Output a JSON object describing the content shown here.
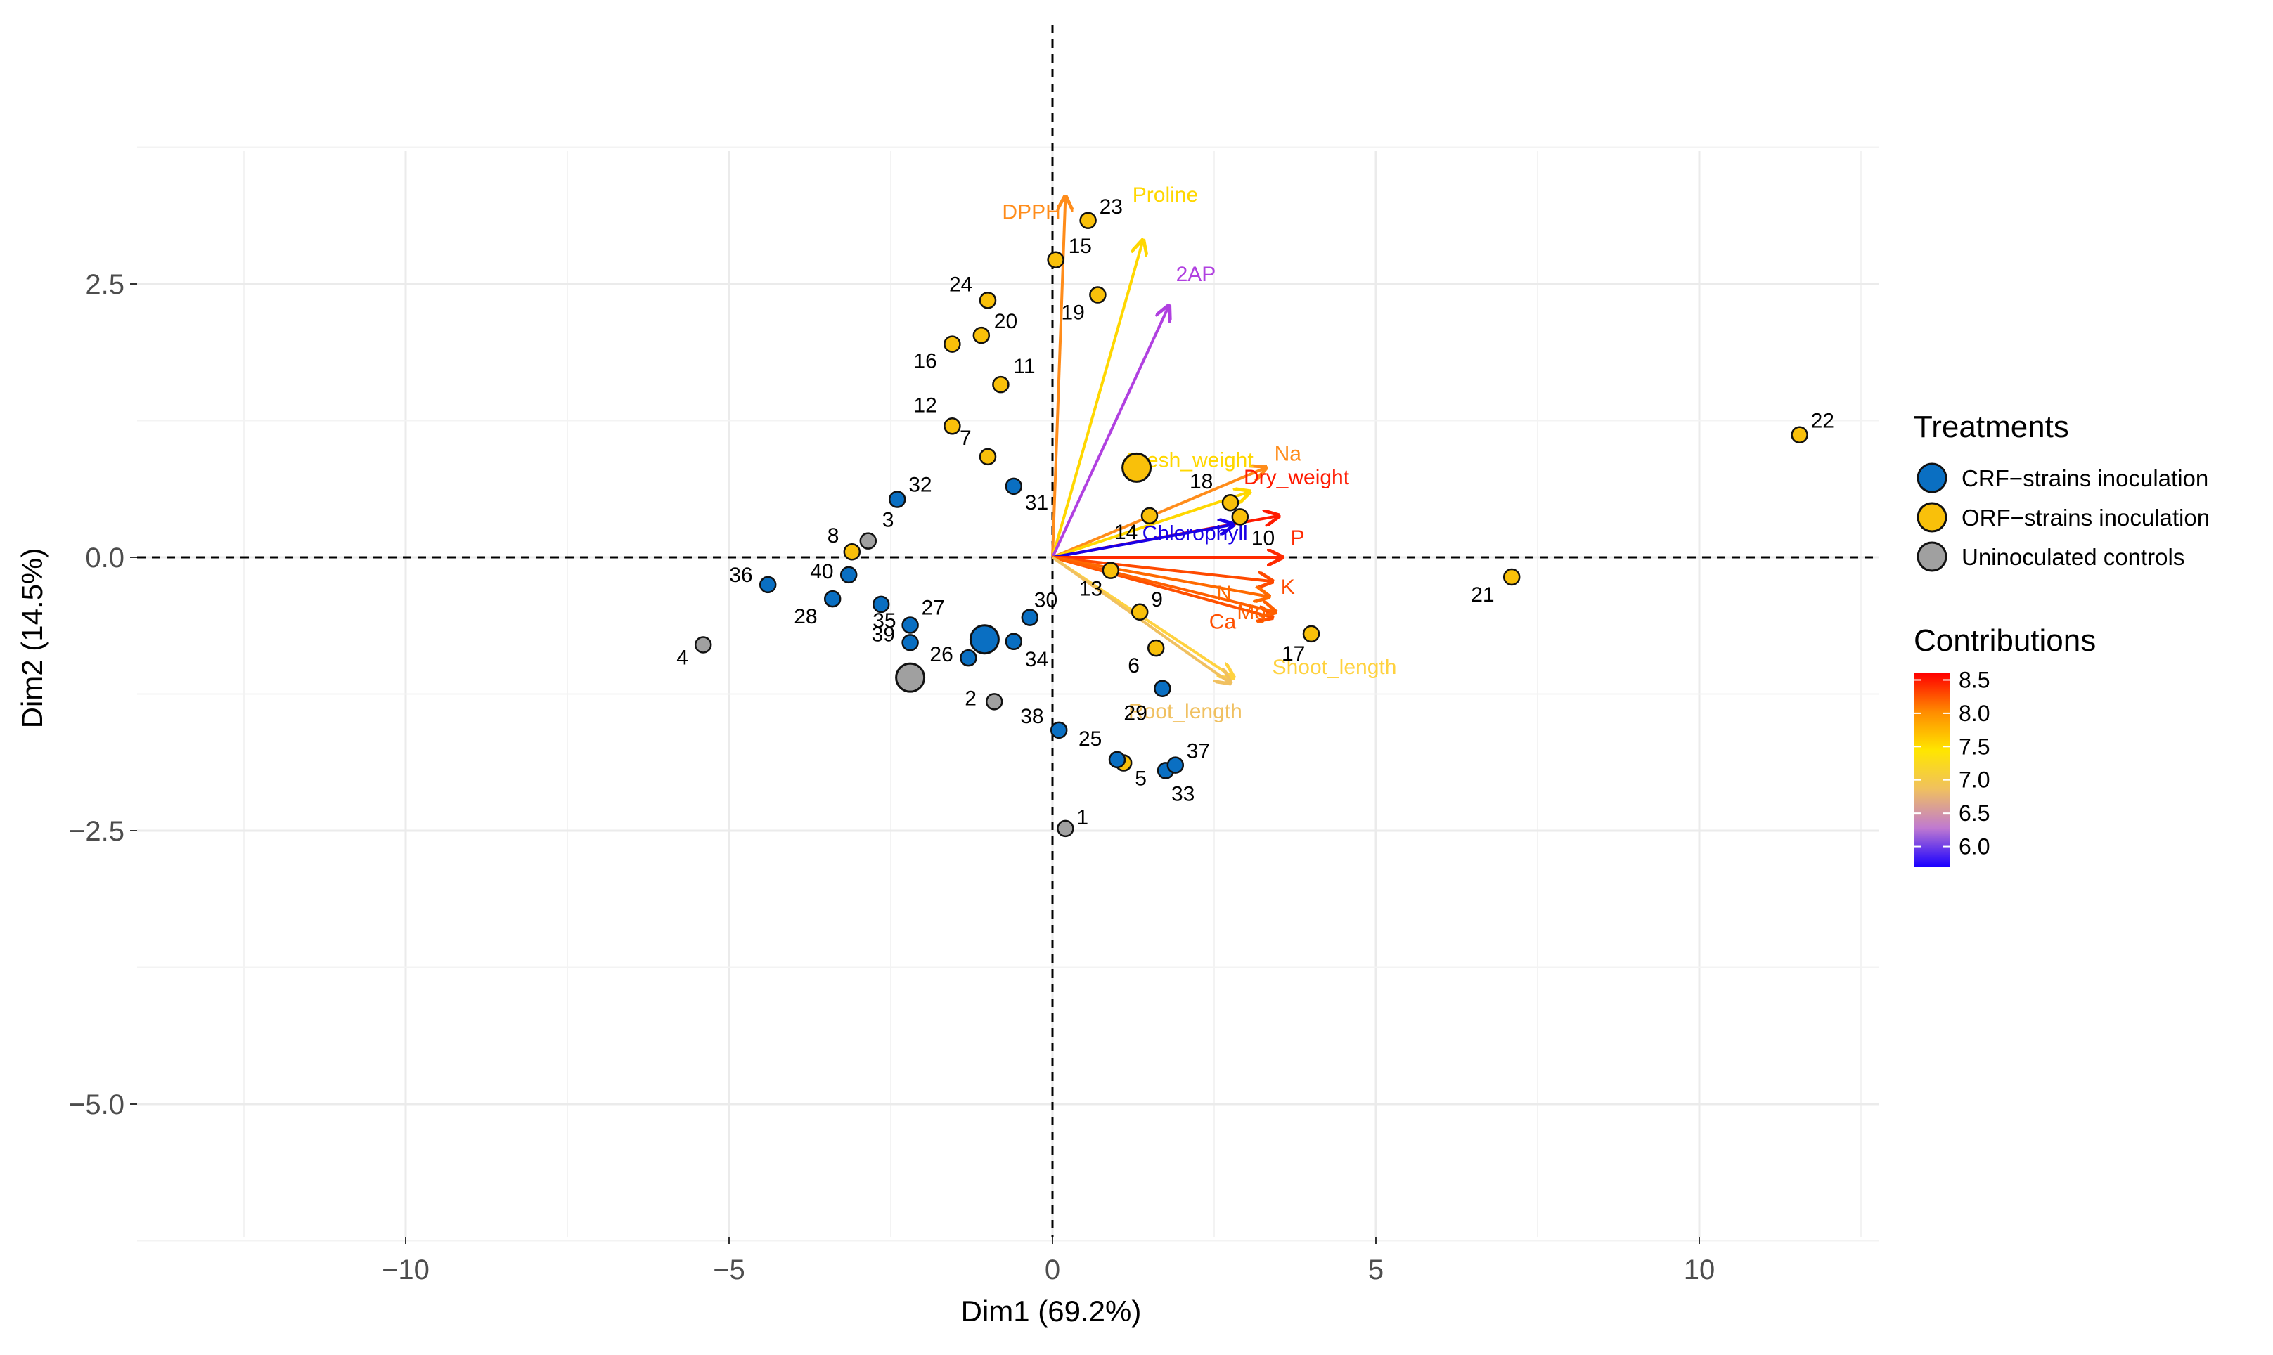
{
  "chart_data": {
    "type": "scatter",
    "subtype": "pca-biplot",
    "xlabel": "Dim1 (69.2%)",
    "ylabel": "Dim2 (14.5%)",
    "xlim": [
      -14,
      12.7
    ],
    "ylim": [
      -6.3,
      4.25
    ],
    "x_ticks": [
      -10,
      -5,
      0,
      5,
      10
    ],
    "x_tick_labels": [
      "−10",
      "−5",
      "0",
      "5",
      "10"
    ],
    "y_ticks": [
      2.5,
      0.0,
      -2.5,
      -5.0
    ],
    "y_tick_labels": [
      "2.5",
      "0.0",
      "−2.5",
      "−5.0"
    ],
    "grid": true,
    "legend_position": "right",
    "treatments_title": "Treatments",
    "treatments": [
      {
        "key": "CRF",
        "name": "CRF−strains inoculation",
        "color": "#0a6fc2"
      },
      {
        "key": "ORF",
        "name": "ORF−strains inoculation",
        "color": "#f9c00a"
      },
      {
        "key": "UN",
        "name": "Uninoculated controls",
        "color": "#a0a0a0"
      }
    ],
    "contributions_title": "Contributions",
    "contributions_range": [
      5.7,
      8.6
    ],
    "contributions_ticks": [
      "8.5",
      "8.0",
      "7.5",
      "7.0",
      "6.5",
      "6.0"
    ],
    "contributions_tick_values": [
      8.5,
      8.0,
      7.5,
      7.0,
      6.5,
      6.0
    ],
    "contributions_gradient": [
      "#ff0000",
      "#ff8c00",
      "#ffe600",
      "#f0c060",
      "#c07ad0",
      "#1a00ff"
    ],
    "individuals": [
      {
        "id": "1",
        "group": "UN",
        "x": 0.2,
        "y": -2.48
      },
      {
        "id": "2",
        "group": "UN",
        "x": -0.9,
        "y": -1.32
      },
      {
        "id": "3",
        "group": "UN",
        "x": -2.85,
        "y": 0.15
      },
      {
        "id": "4",
        "group": "UN",
        "x": -5.4,
        "y": -0.8
      },
      {
        "id": "5",
        "group": "ORF",
        "x": 1.1,
        "y": -1.88
      },
      {
        "id": "6",
        "group": "ORF",
        "x": 1.6,
        "y": -0.83
      },
      {
        "id": "7",
        "group": "ORF",
        "x": -1.0,
        "y": 0.92
      },
      {
        "id": "8",
        "group": "ORF",
        "x": -3.1,
        "y": 0.05
      },
      {
        "id": "9",
        "group": "ORF",
        "x": 1.35,
        "y": -0.5
      },
      {
        "id": "10",
        "group": "ORF",
        "x": 2.9,
        "y": 0.37
      },
      {
        "id": "11",
        "group": "ORF",
        "x": -0.8,
        "y": 1.58
      },
      {
        "id": "12",
        "group": "ORF",
        "x": -1.55,
        "y": 1.2
      },
      {
        "id": "13",
        "group": "ORF",
        "x": 0.9,
        "y": -0.12
      },
      {
        "id": "14",
        "group": "ORF",
        "x": 1.5,
        "y": 0.38
      },
      {
        "id": "15",
        "group": "ORF",
        "x": 0.05,
        "y": 2.72
      },
      {
        "id": "16",
        "group": "ORF",
        "x": -1.55,
        "y": 1.95
      },
      {
        "id": "17",
        "group": "ORF",
        "x": 4.0,
        "y": -0.7
      },
      {
        "id": "18",
        "group": "ORF",
        "x": 2.75,
        "y": 0.5
      },
      {
        "id": "19",
        "group": "ORF",
        "x": 0.7,
        "y": 2.4
      },
      {
        "id": "20",
        "group": "ORF",
        "x": -1.1,
        "y": 2.03
      },
      {
        "id": "21",
        "group": "ORF",
        "x": 7.1,
        "y": -0.18
      },
      {
        "id": "22",
        "group": "ORF",
        "x": 11.55,
        "y": 1.12
      },
      {
        "id": "23",
        "group": "ORF",
        "x": 0.55,
        "y": 3.08
      },
      {
        "id": "24",
        "group": "ORF",
        "x": -1.0,
        "y": 2.35
      },
      {
        "id": "25",
        "group": "CRF",
        "x": 1.0,
        "y": -1.85
      },
      {
        "id": "26",
        "group": "CRF",
        "x": -1.3,
        "y": -0.92
      },
      {
        "id": "27",
        "group": "CRF",
        "x": -2.2,
        "y": -0.62
      },
      {
        "id": "28",
        "group": "CRF",
        "x": -3.4,
        "y": -0.38
      },
      {
        "id": "29",
        "group": "CRF",
        "x": 1.7,
        "y": -1.2
      },
      {
        "id": "30",
        "group": "CRF",
        "x": -0.35,
        "y": -0.55
      },
      {
        "id": "31",
        "group": "CRF",
        "x": -0.6,
        "y": 0.65
      },
      {
        "id": "32",
        "group": "CRF",
        "x": -2.4,
        "y": 0.53
      },
      {
        "id": "33",
        "group": "CRF",
        "x": 1.75,
        "y": -1.95
      },
      {
        "id": "34",
        "group": "CRF",
        "x": -0.6,
        "y": -0.77
      },
      {
        "id": "35",
        "group": "CRF",
        "x": -2.65,
        "y": -0.43
      },
      {
        "id": "36",
        "group": "CRF",
        "x": -4.4,
        "y": -0.25
      },
      {
        "id": "37",
        "group": "CRF",
        "x": 1.9,
        "y": -1.9
      },
      {
        "id": "38",
        "group": "CRF",
        "x": 0.1,
        "y": -1.58
      },
      {
        "id": "39",
        "group": "CRF",
        "x": -2.2,
        "y": -0.78
      },
      {
        "id": "40",
        "group": "CRF",
        "x": -3.15,
        "y": -0.16
      }
    ],
    "centroids": [
      {
        "group": "ORF",
        "x": 1.3,
        "y": 0.82
      },
      {
        "group": "CRF",
        "x": -1.05,
        "y": -0.75
      },
      {
        "group": "UN",
        "x": -2.2,
        "y": -1.1
      }
    ],
    "variables": [
      {
        "name": "DPPH",
        "x": 0.2,
        "y": 3.3,
        "contrib": 7.8,
        "color": "#ff8c1a"
      },
      {
        "name": "Proline",
        "x": 1.4,
        "y": 2.9,
        "contrib": 7.0,
        "color": "#ffd700"
      },
      {
        "name": "2AP",
        "x": 1.8,
        "y": 2.3,
        "contrib": 6.2,
        "color": "#b040e0"
      },
      {
        "name": "Na",
        "x": 3.3,
        "y": 0.82,
        "contrib": 7.8,
        "color": "#ff8c1a"
      },
      {
        "name": "Fresh_weight",
        "x": 3.05,
        "y": 0.6,
        "contrib": 7.1,
        "color": "#ffd700"
      },
      {
        "name": "Dry_weight",
        "x": 3.5,
        "y": 0.38,
        "contrib": 8.6,
        "color": "#ff1a00"
      },
      {
        "name": "Chlorophyll",
        "x": 2.8,
        "y": 0.3,
        "contrib": 5.8,
        "color": "#1a00e6"
      },
      {
        "name": "P",
        "x": 3.55,
        "y": 0.0,
        "contrib": 8.5,
        "color": "#ff2a00"
      },
      {
        "name": "K",
        "x": 3.4,
        "y": -0.22,
        "contrib": 8.3,
        "color": "#ff4a00"
      },
      {
        "name": "N",
        "x": 3.35,
        "y": -0.36,
        "contrib": 8.0,
        "color": "#ff6a00"
      },
      {
        "name": "Ca",
        "x": 3.4,
        "y": -0.55,
        "contrib": 8.2,
        "color": "#ff5000"
      },
      {
        "name": "Mg",
        "x": 3.45,
        "y": -0.5,
        "contrib": 8.1,
        "color": "#ff6000"
      },
      {
        "name": "Shoot_length",
        "x": 2.8,
        "y": -1.1,
        "contrib": 6.9,
        "color": "#ffd23f"
      },
      {
        "name": "Root_length",
        "x": 2.75,
        "y": -1.15,
        "contrib": 6.8,
        "color": "#f0c060"
      }
    ]
  }
}
